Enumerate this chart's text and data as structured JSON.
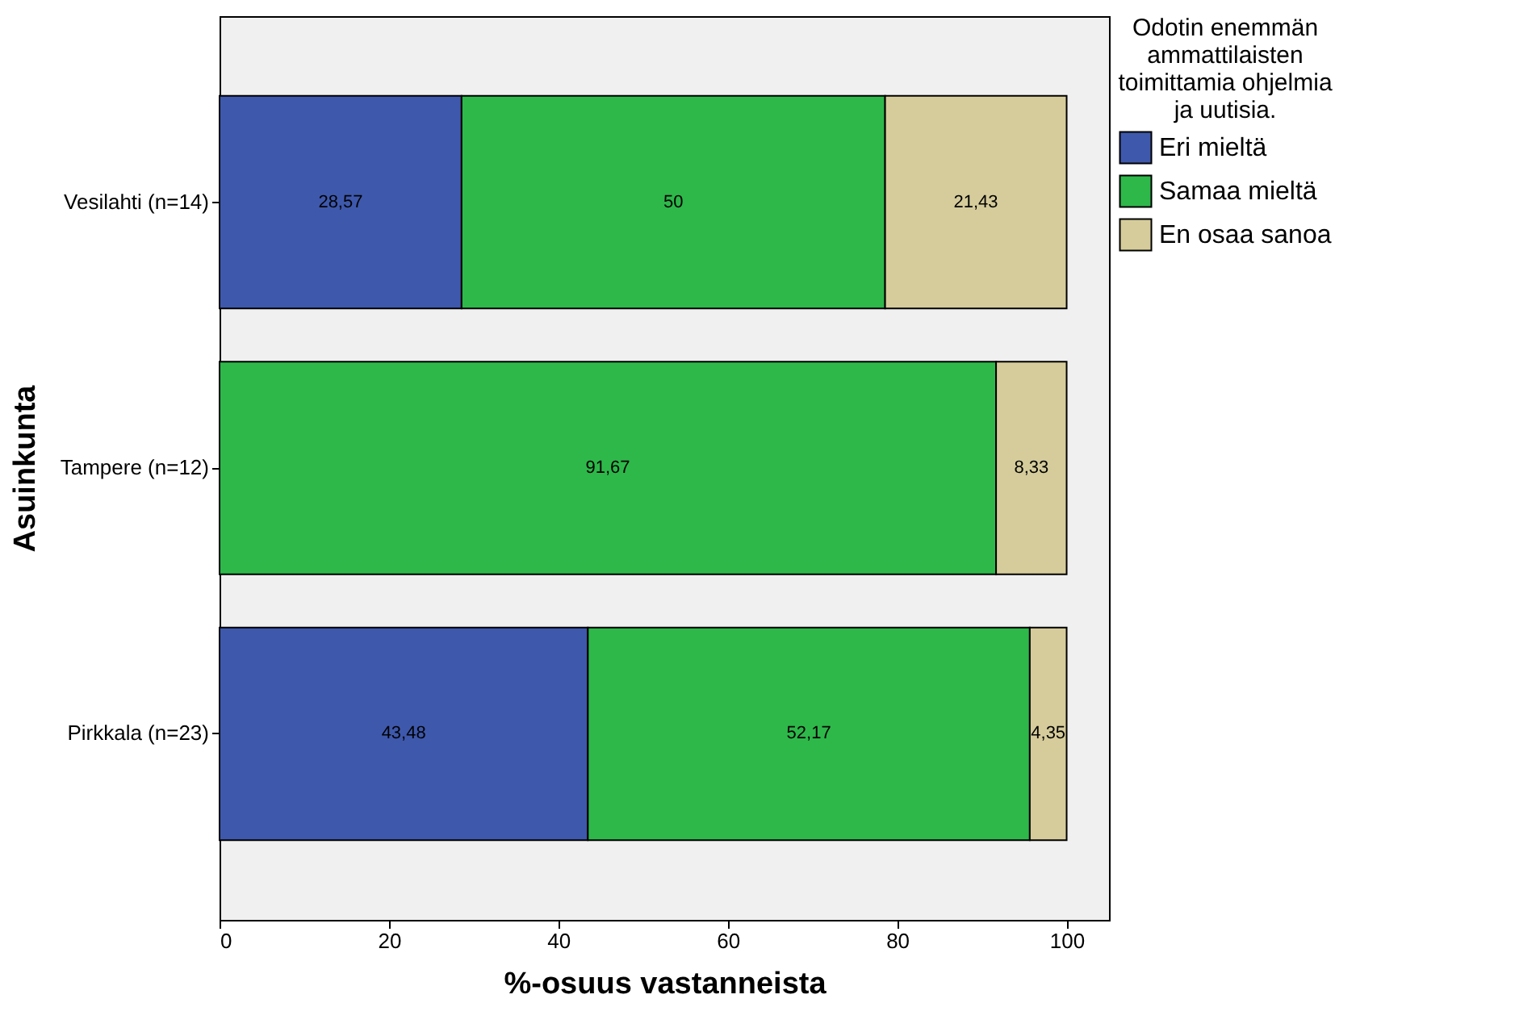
{
  "chart_data": {
    "type": "bar",
    "orientation": "horizontal",
    "stacked": true,
    "xlabel": "%-osuus vastanneista",
    "ylabel": "Asuinkunta",
    "legend_title": "Odotin enemmän ammattilaisten toimittamia ohjelmia ja uutisia.",
    "categories": [
      "Vesilahti (n=14)",
      "Tampere (n=12)",
      "Pirkkala (n=23)"
    ],
    "series": [
      {
        "name": "Eri mieltä",
        "color": "#3e58ac",
        "values": [
          28.57,
          null,
          43.48
        ],
        "value_labels": [
          "28,57",
          null,
          "43,48"
        ]
      },
      {
        "name": "Samaa mieltä",
        "color": "#2eb84a",
        "values": [
          50,
          91.67,
          52.17
        ],
        "value_labels": [
          "50",
          "91,67",
          "52,17"
        ]
      },
      {
        "name": "En osaa sanoa",
        "color": "#d6cc9b",
        "values": [
          21.43,
          8.33,
          4.35
        ],
        "value_labels": [
          "21,43",
          "8,33",
          "4,35"
        ]
      }
    ],
    "xlim": [
      0,
      105
    ],
    "xticks": [
      0,
      20,
      40,
      60,
      80,
      100
    ],
    "grid": false,
    "legend": "top right"
  }
}
